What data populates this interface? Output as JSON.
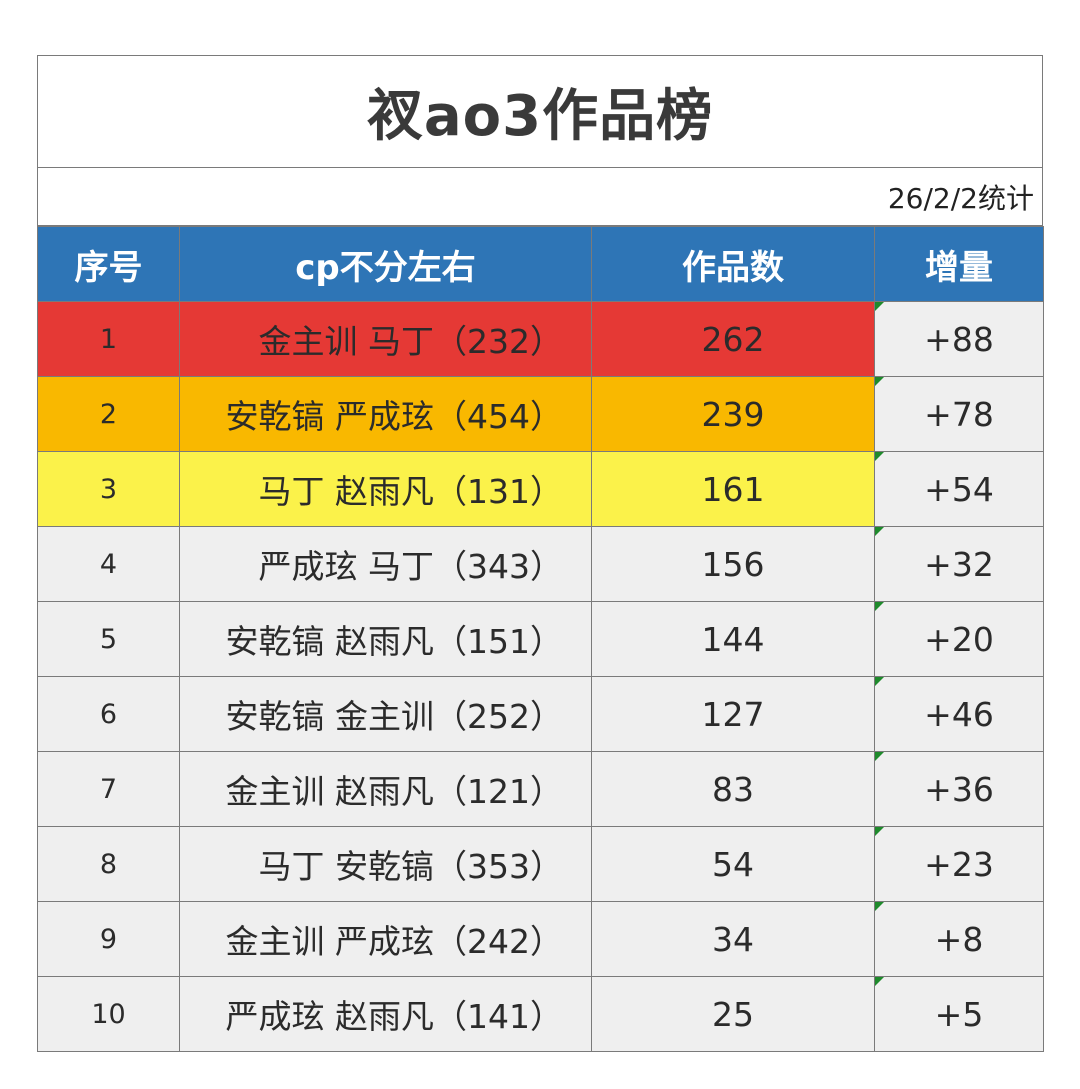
{
  "title": "衩ao3作品榜",
  "date_note": "26/2/2统计",
  "headers": {
    "rank": "序号",
    "cp": "cp不分左右",
    "works": "作品数",
    "increase": "增量"
  },
  "highlight_colors": {
    "header": "#2e75b6",
    "rank1": "#e53935",
    "rank2": "#f9b800",
    "rank3": "#fbf24a",
    "default": "#efefef"
  },
  "rows": [
    {
      "rank": "1",
      "cp": "金主训 马丁（232）",
      "works": "262",
      "increase": "+88"
    },
    {
      "rank": "2",
      "cp": "安乾镐 严成玹（454）",
      "works": "239",
      "increase": "+78"
    },
    {
      "rank": "3",
      "cp": "马丁 赵雨凡（131）",
      "works": "161",
      "increase": "+54"
    },
    {
      "rank": "4",
      "cp": "严成玹 马丁（343）",
      "works": "156",
      "increase": "+32"
    },
    {
      "rank": "5",
      "cp": "安乾镐 赵雨凡（151）",
      "works": "144",
      "increase": "+20"
    },
    {
      "rank": "6",
      "cp": "安乾镐 金主训（252）",
      "works": "127",
      "increase": "+46"
    },
    {
      "rank": "7",
      "cp": "金主训 赵雨凡（121）",
      "works": "83",
      "increase": "+36"
    },
    {
      "rank": "8",
      "cp": "马丁 安乾镐（353）",
      "works": "54",
      "increase": "+23"
    },
    {
      "rank": "9",
      "cp": "金主训 严成玹（242）",
      "works": "34",
      "increase": "+8"
    },
    {
      "rank": "10",
      "cp": "严成玹 赵雨凡（141）",
      "works": "25",
      "increase": "+5"
    }
  ]
}
